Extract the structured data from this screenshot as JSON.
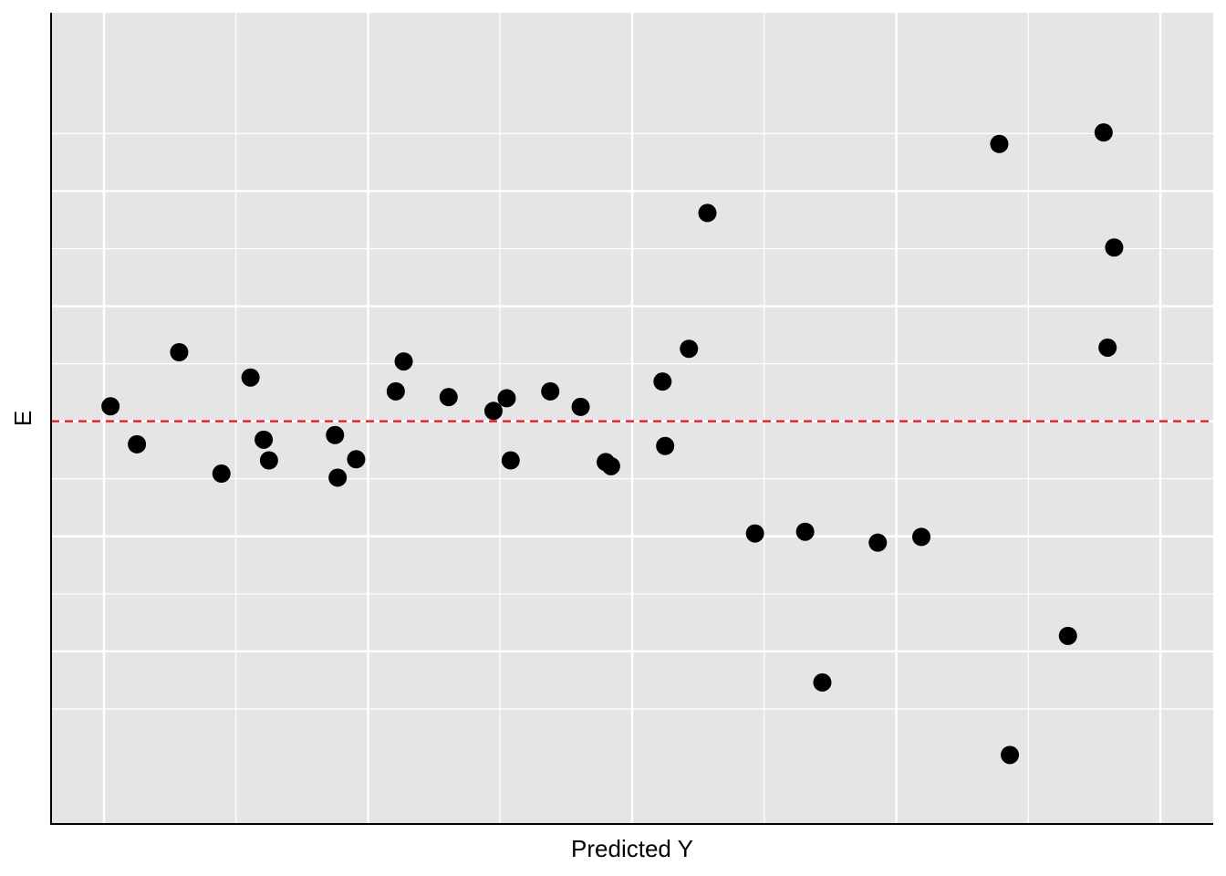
{
  "chart_data": {
    "type": "scatter",
    "xlabel": "Predicted Y",
    "ylabel": "E",
    "x_ticks_labeled": false,
    "y_ticks_labeled": false,
    "xlim": [
      -0.2,
      4.2
    ],
    "ylim": [
      -3.5,
      3.55
    ],
    "x_major_grid": [
      0,
      1,
      2,
      3,
      4
    ],
    "y_major_grid": [
      -2,
      -1,
      0,
      1,
      2
    ],
    "grid": true,
    "reference_line": {
      "y": 0,
      "style": "dashed",
      "color": "#e8141c"
    },
    "colors": {
      "panel": "#e5e5e5",
      "grid": "#ffffff",
      "points": "#000000"
    },
    "points": [
      {
        "x": 0.025,
        "y": 0.13
      },
      {
        "x": 0.125,
        "y": -0.2
      },
      {
        "x": 0.285,
        "y": 0.6
      },
      {
        "x": 0.445,
        "y": -0.455
      },
      {
        "x": 0.555,
        "y": 0.38
      },
      {
        "x": 0.605,
        "y": -0.16
      },
      {
        "x": 0.625,
        "y": -0.34
      },
      {
        "x": 0.875,
        "y": -0.12
      },
      {
        "x": 0.885,
        "y": -0.49
      },
      {
        "x": 0.955,
        "y": -0.33
      },
      {
        "x": 1.105,
        "y": 0.26
      },
      {
        "x": 1.135,
        "y": 0.52
      },
      {
        "x": 1.305,
        "y": 0.21
      },
      {
        "x": 1.475,
        "y": 0.09
      },
      {
        "x": 1.525,
        "y": 0.2
      },
      {
        "x": 1.54,
        "y": -0.34
      },
      {
        "x": 1.69,
        "y": 0.26
      },
      {
        "x": 1.805,
        "y": 0.125
      },
      {
        "x": 1.9,
        "y": -0.355
      },
      {
        "x": 1.92,
        "y": -0.39
      },
      {
        "x": 2.115,
        "y": 0.345
      },
      {
        "x": 2.125,
        "y": -0.215
      },
      {
        "x": 2.215,
        "y": 0.63
      },
      {
        "x": 2.285,
        "y": 1.81
      },
      {
        "x": 2.465,
        "y": -0.975
      },
      {
        "x": 2.655,
        "y": -0.96
      },
      {
        "x": 2.72,
        "y": -2.27
      },
      {
        "x": 2.93,
        "y": -1.055
      },
      {
        "x": 3.095,
        "y": -1.005
      },
      {
        "x": 3.39,
        "y": 2.41
      },
      {
        "x": 3.43,
        "y": -2.9
      },
      {
        "x": 3.65,
        "y": -1.865
      },
      {
        "x": 3.785,
        "y": 2.51
      },
      {
        "x": 3.8,
        "y": 0.64
      },
      {
        "x": 3.825,
        "y": 1.51
      }
    ]
  }
}
